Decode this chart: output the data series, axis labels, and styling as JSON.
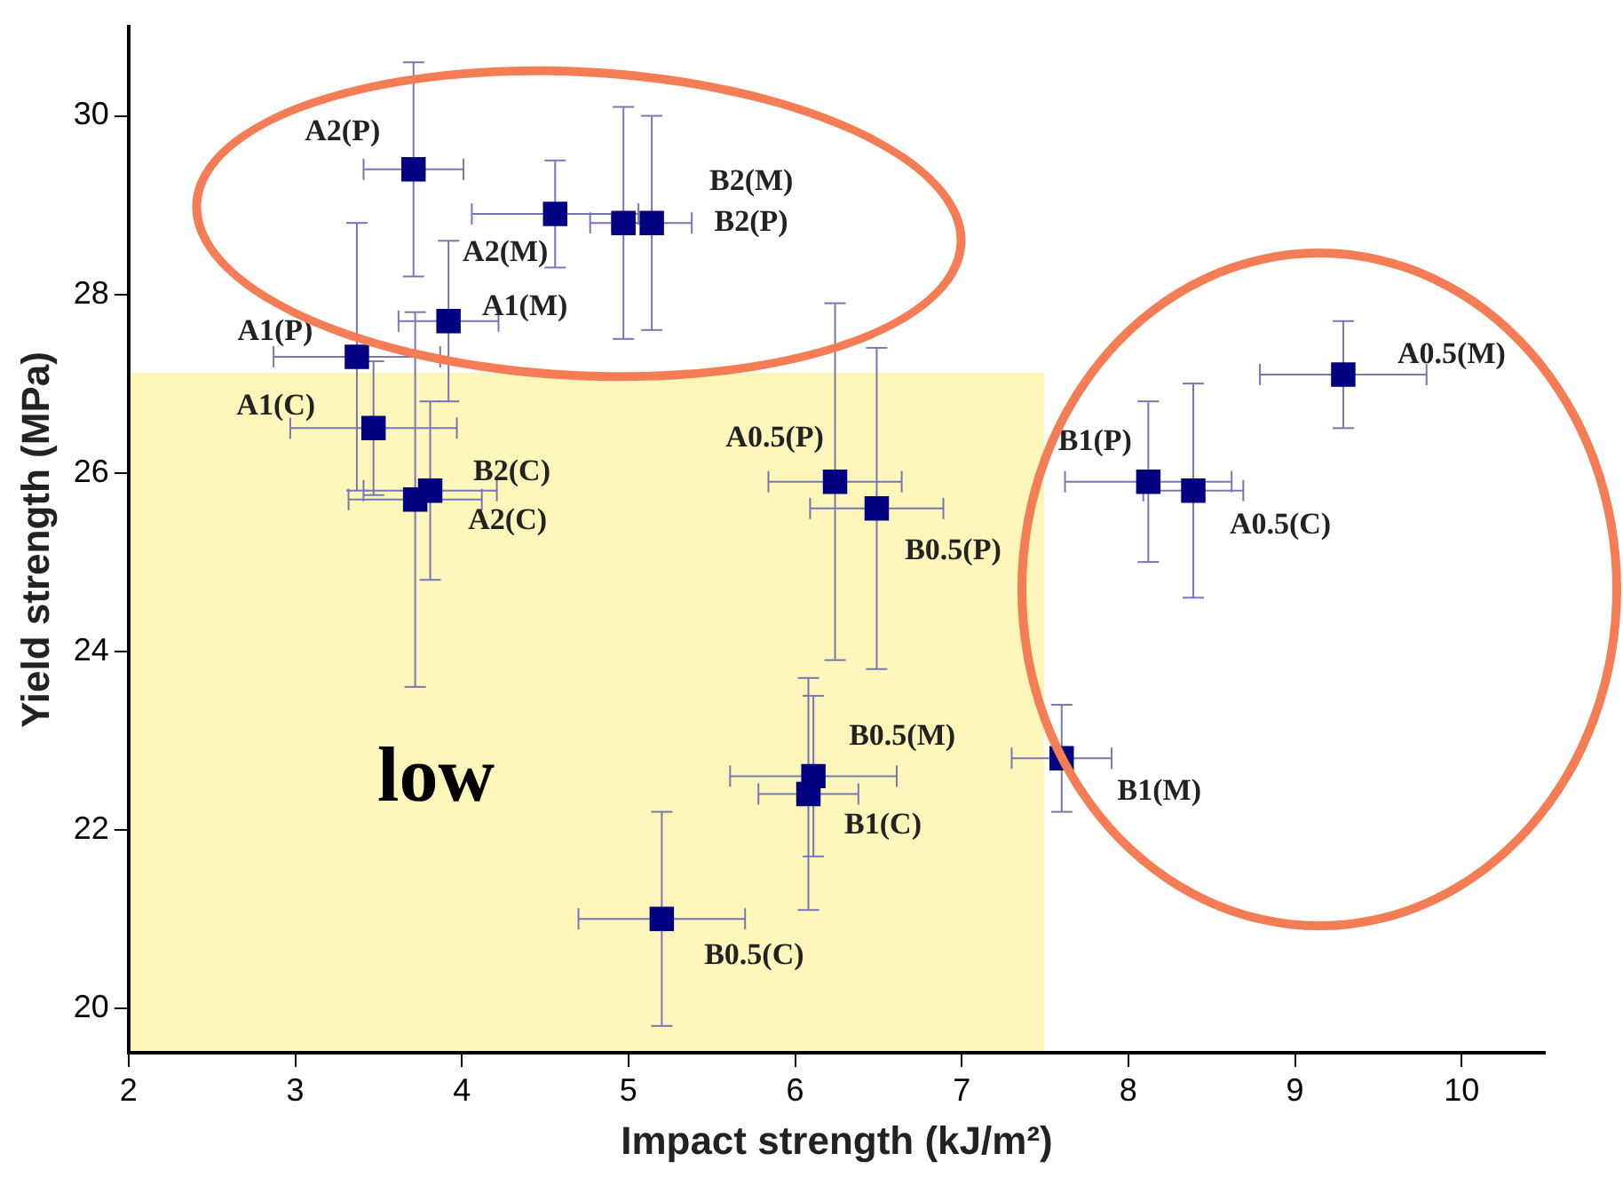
{
  "chart_data": {
    "type": "scatter",
    "xlabel": "Impact strength (kJ/m²)",
    "ylabel": "Yield strength (MPa)",
    "xlim": [
      2,
      10.5
    ],
    "xticks": [
      2,
      3,
      4,
      5,
      6,
      7,
      8,
      9,
      10
    ],
    "ylim": [
      19.5,
      31
    ],
    "yticks": [
      20,
      22,
      24,
      26,
      28,
      30
    ],
    "grid": false,
    "legend": false,
    "marker": "square",
    "series": [
      {
        "color": "#000080",
        "x": [
          3.71,
          4.56,
          4.97,
          5.14,
          3.92,
          3.37,
          3.47,
          3.81,
          3.72,
          6.24,
          6.49,
          6.11,
          6.08,
          5.2,
          8.12,
          8.39,
          9.29,
          7.6
        ],
        "values": [
          29.4,
          28.9,
          28.8,
          28.8,
          27.7,
          27.3,
          26.5,
          25.8,
          25.7,
          25.9,
          25.6,
          22.6,
          22.4,
          21.0,
          25.9,
          25.8,
          27.1,
          22.8
        ],
        "errors": [
          1.2,
          0.6,
          1.3,
          1.2,
          0.9,
          1.5,
          0.75,
          1.0,
          2.1,
          2.0,
          1.8,
          0.9,
          1.3,
          1.2,
          0.9,
          1.2,
          0.6,
          0.6
        ],
        "xerrors": [
          0.3,
          0.5,
          0.2,
          0.24,
          0.3,
          0.5,
          0.5,
          0.4,
          0.4,
          0.4,
          0.4,
          0.5,
          0.3,
          0.5,
          0.5,
          0.3,
          0.5,
          0.3
        ]
      }
    ],
    "annotations": [
      {
        "text": "A2(P)",
        "x": 3.71,
        "y": 29.4
      },
      {
        "text": "A2(M)",
        "x": 4.56,
        "y": 28.9
      },
      {
        "text": "B2(M)",
        "x": 4.97,
        "y": 28.8
      },
      {
        "text": "B2(P)",
        "x": 5.14,
        "y": 28.8
      },
      {
        "text": "A1(M)",
        "x": 3.92,
        "y": 27.7
      },
      {
        "text": "A1(P)",
        "x": 3.37,
        "y": 27.3
      },
      {
        "text": "A1(C)",
        "x": 3.47,
        "y": 26.5
      },
      {
        "text": "B2(C)",
        "x": 3.81,
        "y": 25.8
      },
      {
        "text": "A2(C)",
        "x": 3.72,
        "y": 25.7
      },
      {
        "text": "A0.5(P)",
        "x": 6.24,
        "y": 25.9
      },
      {
        "text": "B0.5(P)",
        "x": 6.49,
        "y": 25.6
      },
      {
        "text": "B0.5(M)",
        "x": 6.11,
        "y": 22.6
      },
      {
        "text": "B1(C)",
        "x": 6.08,
        "y": 22.4
      },
      {
        "text": "B0.5(C)",
        "x": 5.2,
        "y": 21.0
      },
      {
        "text": "B1(P)",
        "x": 8.12,
        "y": 25.9
      },
      {
        "text": "A0.5(C)",
        "x": 8.39,
        "y": 25.8
      },
      {
        "text": "A0.5(M)",
        "x": 9.29,
        "y": 27.1
      },
      {
        "text": "B1(M)",
        "x": 7.6,
        "y": 22.8
      },
      "low"
    ]
  }
}
